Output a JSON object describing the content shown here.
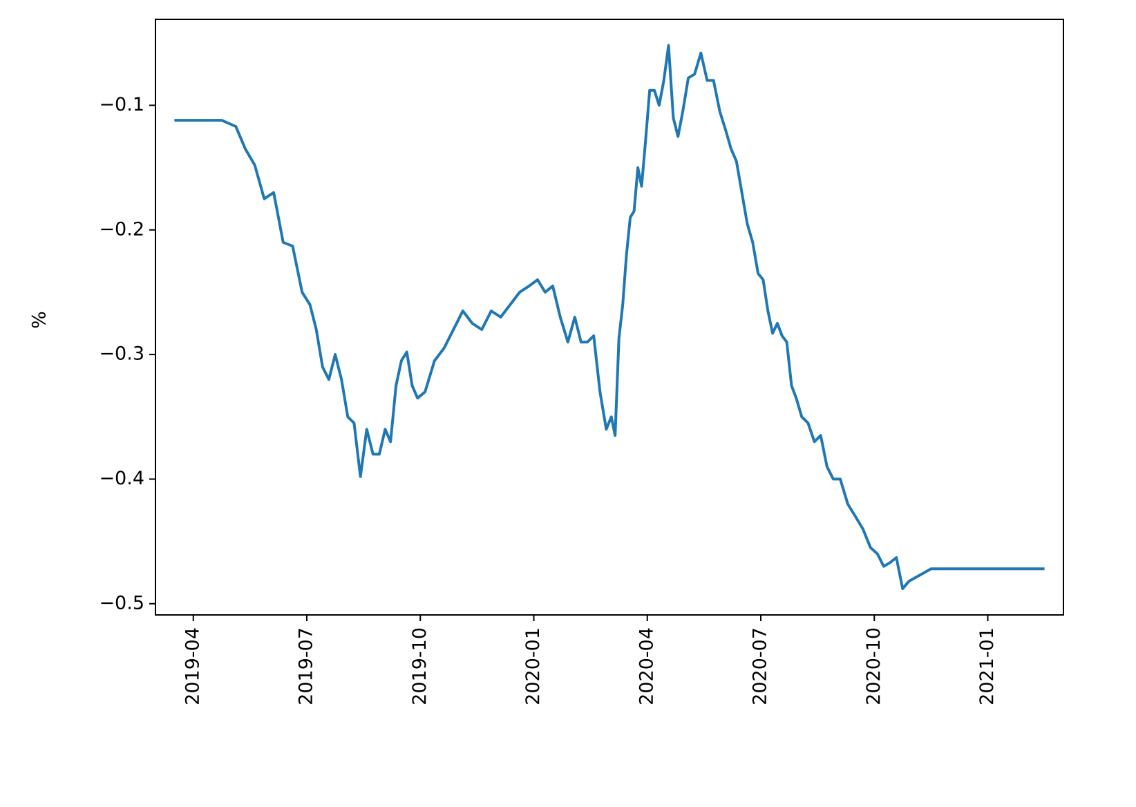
{
  "chart_data": {
    "type": "line",
    "ylabel": "%",
    "x": [
      "2019-03",
      "2019-04",
      "2019-04",
      "2019-05",
      "2019-05",
      "2019-05",
      "2019-05",
      "2019-06",
      "2019-06",
      "2019-06",
      "2019-06",
      "2019-07",
      "2019-07",
      "2019-07",
      "2019-07",
      "2019-07",
      "2019-07",
      "2019-08",
      "2019-08",
      "2019-08",
      "2019-08",
      "2019-08",
      "2019-08",
      "2019-09",
      "2019-09",
      "2019-09",
      "2019-09",
      "2019-09",
      "2019-09",
      "2019-09",
      "2019-10",
      "2019-10",
      "2019-10",
      "2019-10",
      "2019-11",
      "2019-11",
      "2019-11",
      "2019-11",
      "2019-12",
      "2019-12",
      "2019-12",
      "2019-12",
      "2020-01",
      "2020-01",
      "2020-01",
      "2020-01",
      "2020-01",
      "2020-02",
      "2020-02",
      "2020-02",
      "2020-02",
      "2020-02",
      "2020-02",
      "2020-03",
      "2020-03",
      "2020-03",
      "2020-03",
      "2020-03",
      "2020-03",
      "2020-03",
      "2020-03",
      "2020-03",
      "2020-03",
      "2020-04",
      "2020-04",
      "2020-04",
      "2020-04",
      "2020-04",
      "2020-04",
      "2020-04",
      "2020-04",
      "2020-05",
      "2020-05",
      "2020-05",
      "2020-05",
      "2020-05",
      "2020-05",
      "2020-06",
      "2020-06",
      "2020-06",
      "2020-06",
      "2020-06",
      "2020-06",
      "2020-06",
      "2020-07",
      "2020-07",
      "2020-07",
      "2020-07",
      "2020-07",
      "2020-07",
      "2020-07",
      "2020-07",
      "2020-08",
      "2020-08",
      "2020-08",
      "2020-08",
      "2020-08",
      "2020-08",
      "2020-09",
      "2020-09",
      "2020-09",
      "2020-09",
      "2020-09",
      "2020-10",
      "2020-10",
      "2020-10",
      "2020-10",
      "2020-10",
      "2020-10",
      "2020-11",
      "2020-12",
      "2021-01",
      "2021-02"
    ],
    "series": [
      {
        "color": "#1f77b4",
        "values": [
          -0.112,
          -0.112,
          -0.112,
          -0.117,
          -0.135,
          -0.148,
          -0.175,
          -0.17,
          -0.21,
          -0.213,
          -0.25,
          -0.26,
          -0.28,
          -0.31,
          -0.32,
          -0.3,
          -0.32,
          -0.35,
          -0.355,
          -0.398,
          -0.36,
          -0.38,
          -0.38,
          -0.36,
          -0.37,
          -0.325,
          -0.305,
          -0.298,
          -0.325,
          -0.335,
          -0.33,
          -0.305,
          -0.295,
          -0.28,
          -0.265,
          -0.275,
          -0.28,
          -0.265,
          -0.27,
          -0.26,
          -0.25,
          -0.245,
          -0.24,
          -0.25,
          -0.245,
          -0.27,
          -0.29,
          -0.27,
          -0.29,
          -0.29,
          -0.285,
          -0.33,
          -0.36,
          -0.35,
          -0.365,
          -0.287,
          -0.26,
          -0.22,
          -0.19,
          -0.185,
          -0.15,
          -0.165,
          -0.13,
          -0.088,
          -0.088,
          -0.1,
          -0.08,
          -0.052,
          -0.11,
          -0.125,
          -0.105,
          -0.078,
          -0.075,
          -0.058,
          -0.08,
          -0.08,
          -0.105,
          -0.12,
          -0.135,
          -0.145,
          -0.17,
          -0.195,
          -0.21,
          -0.235,
          -0.24,
          -0.265,
          -0.283,
          -0.275,
          -0.285,
          -0.29,
          -0.325,
          -0.335,
          -0.35,
          -0.355,
          -0.37,
          -0.365,
          -0.39,
          -0.4,
          -0.4,
          -0.42,
          -0.43,
          -0.44,
          -0.455,
          -0.46,
          -0.47,
          -0.467,
          -0.463,
          -0.488,
          -0.482,
          -0.472,
          -0.472,
          -0.472,
          -0.472
        ]
      }
    ],
    "xlim": [
      "2019-03",
      "2021-03"
    ],
    "xticks": [
      "2019-04",
      "2019-07",
      "2019-10",
      "2020-01",
      "2020-04",
      "2020-07",
      "2020-10",
      "2021-01"
    ],
    "ylim": [
      -0.509,
      -0.031
    ],
    "yticks": [
      {
        "value": -0.5,
        "label": "−0.5"
      },
      {
        "value": -0.4,
        "label": "−0.4"
      },
      {
        "value": -0.3,
        "label": "−0.3"
      },
      {
        "value": -0.2,
        "label": "−0.2"
      },
      {
        "value": -0.1,
        "label": "−0.1"
      }
    ]
  }
}
